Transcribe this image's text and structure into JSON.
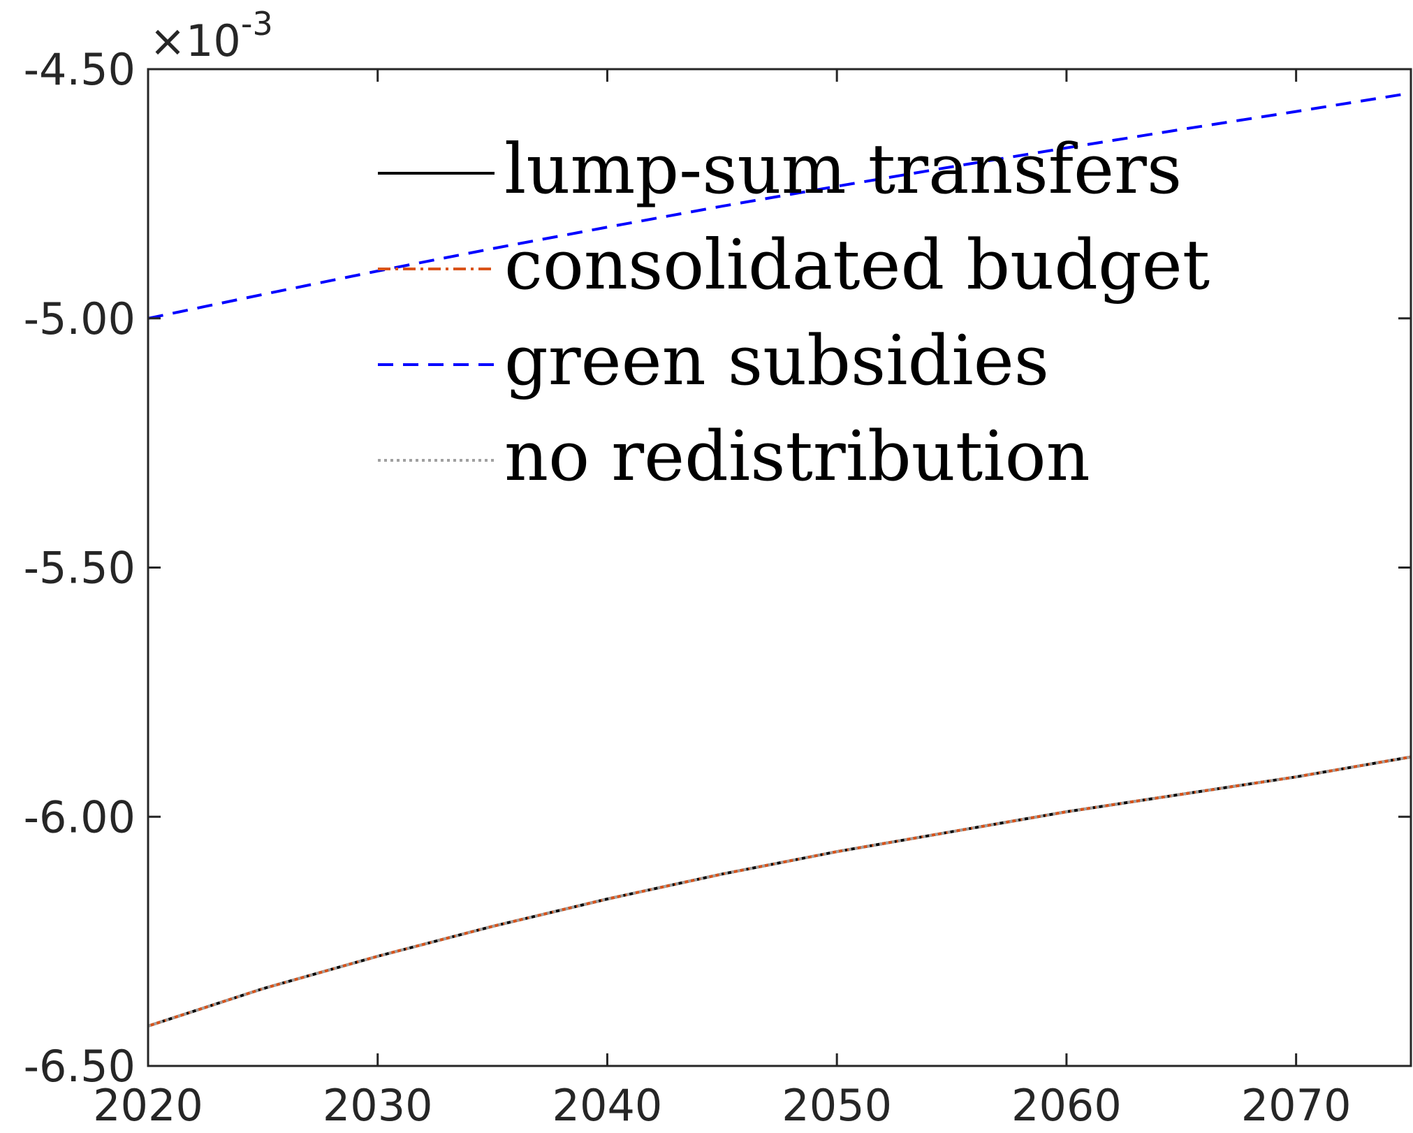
{
  "chart_data": {
    "type": "line",
    "xlim": [
      2020,
      2075
    ],
    "ylim": [
      -6.5,
      -4.5
    ],
    "y_exponent_label": {
      "base": "×10",
      "exponent": "-3"
    },
    "x_ticks": [
      2020,
      2030,
      2040,
      2050,
      2060,
      2070
    ],
    "x_tick_labels": [
      "2020",
      "2030",
      "2040",
      "2050",
      "2060",
      "2070"
    ],
    "y_ticks": [
      -4.5,
      -5.0,
      -5.5,
      -6.0,
      -6.5
    ],
    "y_tick_labels": [
      "-4.50",
      "-5.00",
      "-5.50",
      "-6.00",
      "-6.50"
    ],
    "grid": false,
    "legend_position": "top-center",
    "x": [
      2020,
      2025,
      2030,
      2035,
      2040,
      2045,
      2050,
      2055,
      2060,
      2065,
      2070,
      2075
    ],
    "series": [
      {
        "name": "lump-sum transfers",
        "color": "#000000",
        "style": "solid",
        "values": [
          -6.42,
          -6.345,
          -6.28,
          -6.22,
          -6.165,
          -6.115,
          -6.07,
          -6.03,
          -5.99,
          -5.955,
          -5.92,
          -5.88
        ]
      },
      {
        "name": "consolidated budget",
        "color": "#D95319",
        "style": "dashdot",
        "values": [
          -6.42,
          -6.345,
          -6.28,
          -6.22,
          -6.165,
          -6.115,
          -6.07,
          -6.03,
          -5.99,
          -5.955,
          -5.92,
          -5.88
        ]
      },
      {
        "name": "green subsidies",
        "color": "#0000FF",
        "style": "dashed",
        "values": [
          -5.0,
          -4.952,
          -4.905,
          -4.86,
          -4.817,
          -4.775,
          -4.735,
          -4.696,
          -4.658,
          -4.621,
          -4.585,
          -4.548
        ]
      },
      {
        "name": "no redistribution",
        "color": "#A0A0A0",
        "style": "dotted",
        "values": [
          -6.42,
          -6.345,
          -6.28,
          -6.22,
          -6.165,
          -6.115,
          -6.07,
          -6.03,
          -5.99,
          -5.955,
          -5.92,
          -5.88
        ]
      }
    ]
  }
}
